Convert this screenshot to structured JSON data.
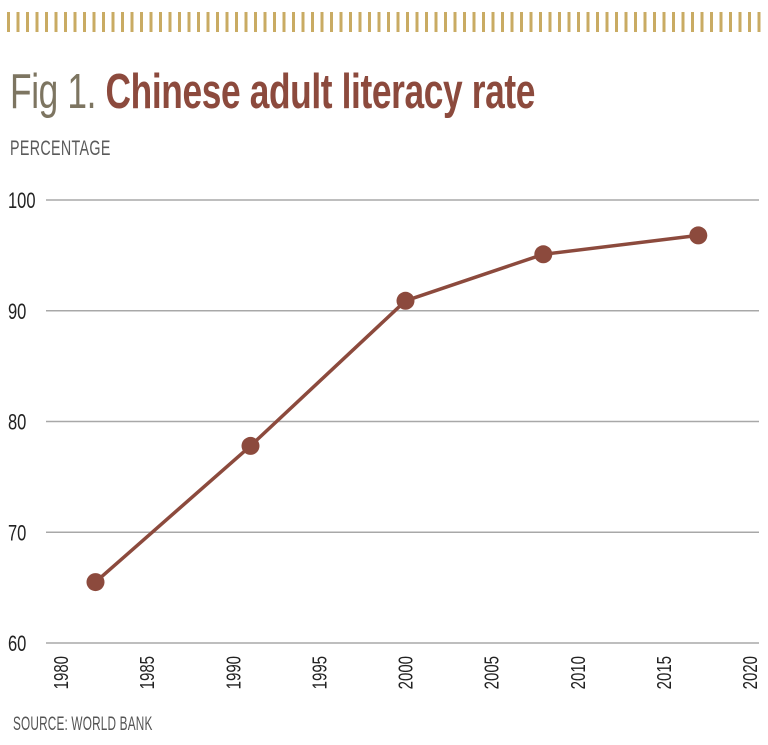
{
  "header": {
    "fig_label": "Fig 1.",
    "title": "Chinese adult literacy rate"
  },
  "axis": {
    "ylabel": "PERCENTAGE"
  },
  "footer": {
    "source": "SOURCE: WORLD BANK"
  },
  "colors": {
    "accent": "#8c4a3d",
    "fig_label": "#7d7561",
    "stripes": "#c9ab63",
    "gridline": "#a8a8a8",
    "text": "#222222"
  },
  "chart_data": {
    "type": "line",
    "title": "Fig 1. Chinese adult literacy rate",
    "xlabel": "",
    "ylabel": "PERCENTAGE",
    "x": [
      1982,
      1991,
      2000,
      2008,
      2017
    ],
    "series": [
      {
        "name": "Adult literacy rate",
        "values": [
          65.5,
          77.8,
          90.9,
          95.1,
          96.8
        ],
        "color": "#8c4a3d"
      }
    ],
    "xlim": [
      1980,
      2020
    ],
    "ylim": [
      60,
      100
    ],
    "xticks": [
      "1980",
      "1985",
      "1990",
      "1995",
      "2000",
      "2005",
      "2010",
      "2015",
      "2020"
    ],
    "yticks": [
      "60",
      "70",
      "80",
      "90",
      "100"
    ],
    "grid": "horizontal",
    "legend": "none",
    "annotation": "SOURCE: WORLD BANK"
  }
}
